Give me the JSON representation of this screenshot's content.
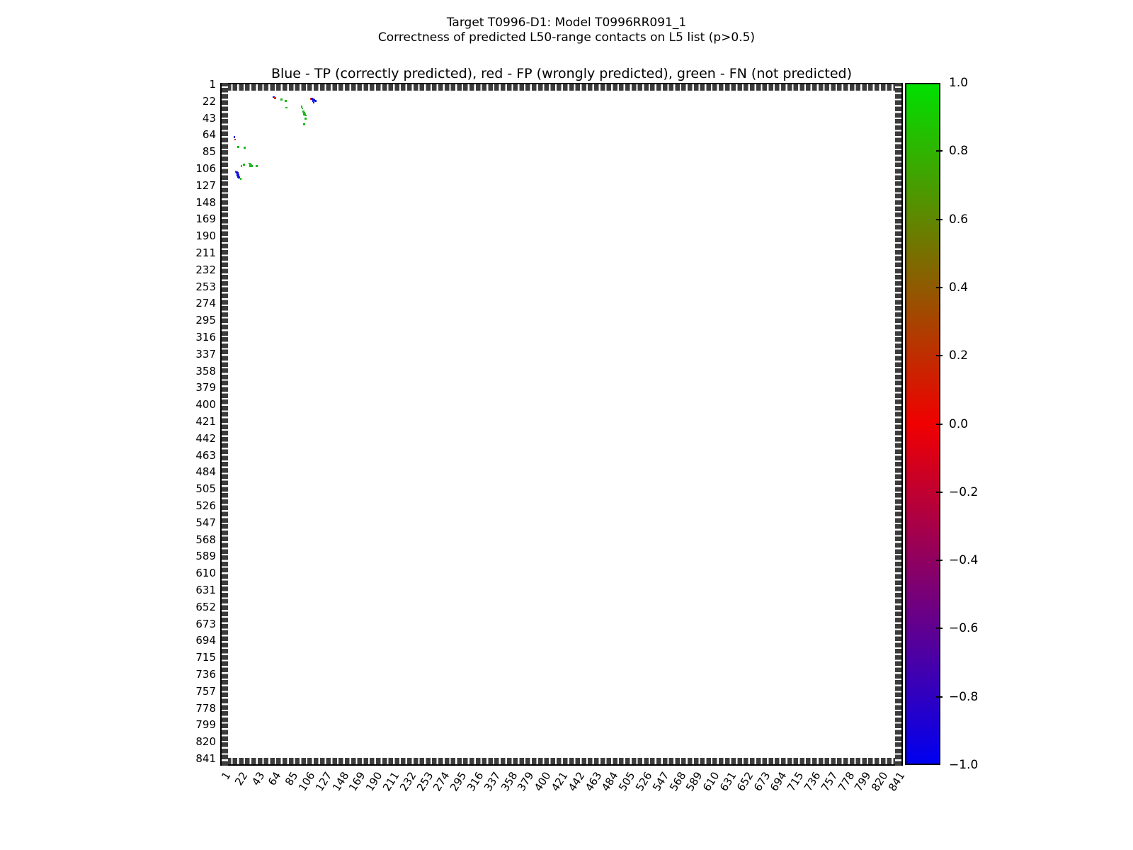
{
  "figure": {
    "suptitle_line1": "Target T0996-D1: Model T0996RR091_1",
    "suptitle_line2": "Correctness of predicted L50-range contacts on L5 list (p>0.5)"
  },
  "chart_data": {
    "type": "scatter",
    "title": "Blue - TP (correctly predicted), red - FP (wrongly predicted), green - FN (not predicted)",
    "xlabel": "",
    "ylabel": "",
    "xlim": [
      1,
      841
    ],
    "ylim": [
      841,
      1
    ],
    "y_axis_inverted": true,
    "grid": false,
    "x_tick_labels": [
      1,
      22,
      43,
      64,
      85,
      106,
      127,
      148,
      169,
      190,
      211,
      232,
      253,
      274,
      295,
      316,
      337,
      358,
      379,
      400,
      421,
      442,
      463,
      484,
      505,
      526,
      547,
      568,
      589,
      610,
      631,
      652,
      673,
      694,
      715,
      736,
      757,
      778,
      799,
      820,
      841
    ],
    "y_tick_labels": [
      1,
      22,
      43,
      64,
      85,
      106,
      127,
      148,
      169,
      190,
      211,
      232,
      253,
      274,
      295,
      316,
      337,
      358,
      379,
      400,
      421,
      442,
      463,
      484,
      505,
      526,
      547,
      568,
      589,
      610,
      631,
      652,
      673,
      694,
      715,
      736,
      757,
      778,
      799,
      820,
      841
    ],
    "legend": [
      {
        "class": "tp",
        "label": "TP (correctly predicted)",
        "color_name": "blue"
      },
      {
        "class": "fp",
        "label": "FP (wrongly predicted)",
        "color_name": "red"
      },
      {
        "class": "fn",
        "label": "FN (not predicted)",
        "color_name": "green"
      }
    ],
    "colors": {
      "tp": "#1212e0",
      "fp": "#d42a2a",
      "fn": "#1cb81c"
    },
    "points": [
      {
        "x": 64,
        "y": 17,
        "c": "tp"
      },
      {
        "x": 66,
        "y": 18,
        "c": "fp"
      },
      {
        "x": 74,
        "y": 20,
        "c": "fn"
      },
      {
        "x": 79,
        "y": 22,
        "c": "fn"
      },
      {
        "x": 80,
        "y": 30,
        "c": "fn"
      },
      {
        "x": 99,
        "y": 29,
        "c": "fn"
      },
      {
        "x": 100,
        "y": 31,
        "c": "fn"
      },
      {
        "x": 111,
        "y": 19,
        "c": "fp"
      },
      {
        "x": 112,
        "y": 19,
        "c": "tp"
      },
      {
        "x": 114,
        "y": 20,
        "c": "tp"
      },
      {
        "x": 115,
        "y": 21,
        "c": "tp"
      },
      {
        "x": 113,
        "y": 22,
        "c": "tp"
      },
      {
        "x": 116,
        "y": 22,
        "c": "tp"
      },
      {
        "x": 114,
        "y": 24,
        "c": "tp"
      },
      {
        "x": 101,
        "y": 35,
        "c": "fn"
      },
      {
        "x": 102,
        "y": 37,
        "c": "fn"
      },
      {
        "x": 103,
        "y": 38,
        "c": "fn"
      },
      {
        "x": 102,
        "y": 39,
        "c": "fn"
      },
      {
        "x": 104,
        "y": 40,
        "c": "fn"
      },
      {
        "x": 104,
        "y": 44,
        "c": "fn"
      },
      {
        "x": 102,
        "y": 51,
        "c": "fn"
      },
      {
        "x": 15,
        "y": 67,
        "c": "tp"
      },
      {
        "x": 16,
        "y": 70,
        "c": "fp"
      },
      {
        "x": 20,
        "y": 79,
        "c": "fn"
      },
      {
        "x": 28,
        "y": 80,
        "c": "fn"
      },
      {
        "x": 27,
        "y": 101,
        "c": "fn"
      },
      {
        "x": 24,
        "y": 103,
        "c": "fn"
      },
      {
        "x": 34,
        "y": 100,
        "c": "fn"
      },
      {
        "x": 35,
        "y": 101,
        "c": "fn"
      },
      {
        "x": 36,
        "y": 102,
        "c": "fn"
      },
      {
        "x": 35,
        "y": 103,
        "c": "fn"
      },
      {
        "x": 37,
        "y": 103,
        "c": "fn"
      },
      {
        "x": 43,
        "y": 103,
        "c": "fn"
      },
      {
        "x": 17,
        "y": 110,
        "c": "fp"
      },
      {
        "x": 18,
        "y": 111,
        "c": "tp"
      },
      {
        "x": 19,
        "y": 112,
        "c": "tp"
      },
      {
        "x": 19,
        "y": 113,
        "c": "tp"
      },
      {
        "x": 20,
        "y": 114,
        "c": "tp"
      },
      {
        "x": 19,
        "y": 115,
        "c": "tp"
      },
      {
        "x": 20,
        "y": 116,
        "c": "tp"
      },
      {
        "x": 21,
        "y": 117,
        "c": "tp"
      },
      {
        "x": 23,
        "y": 119,
        "c": "fn"
      }
    ],
    "colorbar": {
      "min": -1.0,
      "max": 1.0,
      "tick_values": [
        1.0,
        0.8,
        0.6,
        0.4,
        0.2,
        0.0,
        -0.2,
        -0.4,
        -0.6,
        -0.8,
        -1.0
      ],
      "tick_labels": [
        "1.0",
        "0.8",
        "0.6",
        "0.4",
        "0.2",
        "0.0",
        "−0.2",
        "−0.4",
        "−0.6",
        "−0.8",
        "−1.0"
      ],
      "top_color": "#00e000",
      "middle_color": "#f00000",
      "bottom_color": "#0000f0"
    }
  }
}
